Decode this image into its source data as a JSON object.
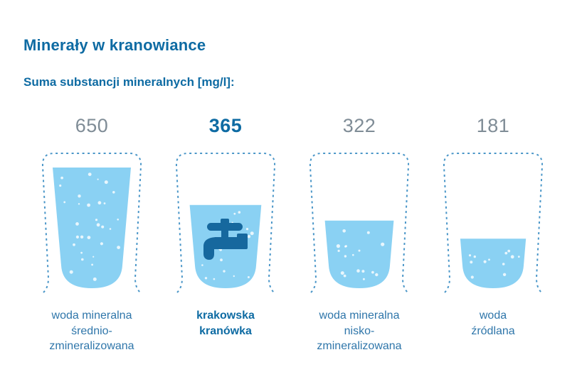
{
  "header": {
    "title": "Minerały w kranowiance",
    "subtitle": "Suma substancji mineralnych [mg/l]:"
  },
  "chart_data": {
    "type": "bar",
    "title": "Minerały w kranowiance",
    "subtitle": "Suma substancji mineralnych [mg/l]:",
    "unit": "mg/l",
    "categories": [
      "woda mineralna średnio-zmineralizowana",
      "krakowska kranówka",
      "woda mineralna nisko-zmineralizowana",
      "woda źródlana"
    ],
    "values": [
      650,
      365,
      322,
      181
    ],
    "highlighted_index": 1,
    "items": [
      {
        "value": "650",
        "label": "woda mineralna\nśrednio-\nzmineralizowana",
        "fill_percent": 100,
        "highlight": false,
        "icon": null
      },
      {
        "value": "365",
        "label": "krakowska\nkranówka",
        "fill_percent": 69,
        "highlight": true,
        "icon": "faucet-icon"
      },
      {
        "value": "322",
        "label": "woda mineralna\nnisko-\nzmineralizowana",
        "fill_percent": 56,
        "highlight": false,
        "icon": null
      },
      {
        "value": "181",
        "label": "woda\nźródlana",
        "fill_percent": 41,
        "highlight": false,
        "icon": null
      }
    ]
  },
  "colors": {
    "title_blue": "#0e6ba3",
    "label_blue": "#2f76aa",
    "number_gray": "#7f8c96",
    "water_blue": "#8ad1f3",
    "outline_blue": "#4a96c8",
    "faucet_blue": "#16689e",
    "bubble_white": "#ffffff",
    "background": "#ffffff"
  }
}
